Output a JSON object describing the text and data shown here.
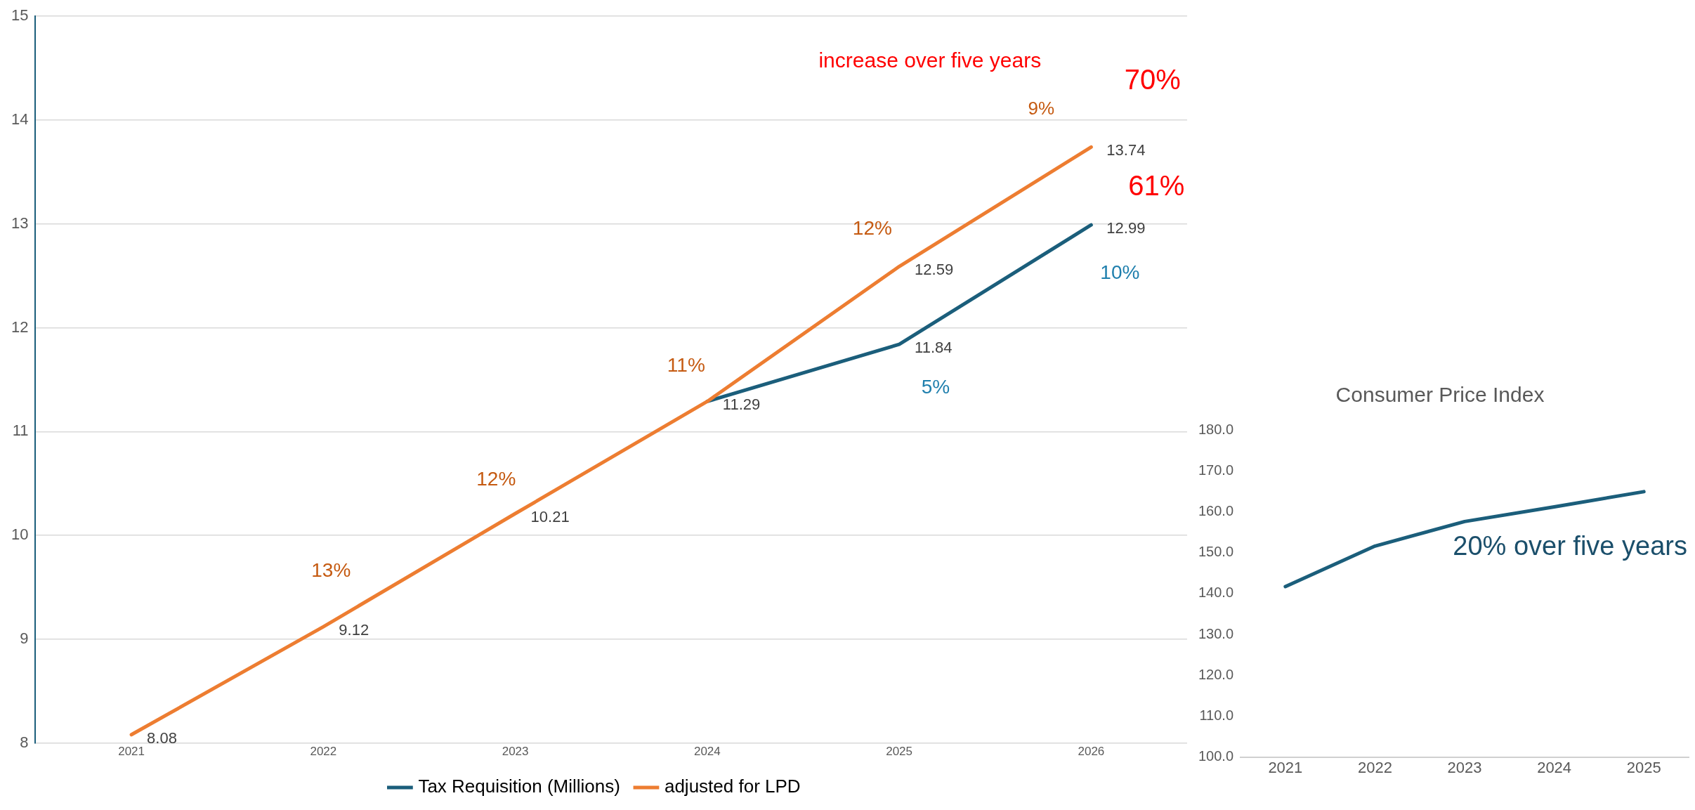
{
  "chart_data": [
    {
      "type": "line",
      "x": [
        2021,
        2022,
        2023,
        2024,
        2025,
        2026
      ],
      "xlim": [
        2020.5,
        2026.5
      ],
      "xticks": [
        2021,
        2022,
        2023,
        2024,
        2025,
        2026
      ],
      "ylim": [
        8,
        15
      ],
      "yticks": [
        8,
        9,
        10,
        11,
        12,
        13,
        14,
        15
      ],
      "grid": "y",
      "legend": "bottom",
      "marker": "none",
      "line_style": "solid",
      "series": [
        {
          "name": "Tax Requisition (Millions)",
          "color": "#1b5e7b",
          "values": [
            null,
            null,
            null,
            11.29,
            11.84,
            12.99
          ],
          "value_labels": [
            null,
            null,
            null,
            "11.29",
            "11.84",
            "12.99"
          ]
        },
        {
          "name": "adjusted for LPD",
          "color": "#ed7d31",
          "values": [
            8.08,
            9.12,
            10.21,
            11.29,
            12.59,
            13.74
          ],
          "value_labels": [
            "8.08",
            "9.12",
            "10.21",
            null,
            "12.59",
            "13.74"
          ]
        }
      ],
      "annotations": [
        "13%",
        "12%",
        "11%",
        "12%",
        "9%",
        "5%",
        "10%",
        "increase over five years",
        "70%",
        "61%"
      ]
    },
    {
      "type": "line",
      "title": "Consumer Price Index",
      "x": [
        2021,
        2022,
        2023,
        2024,
        2025
      ],
      "xlim": [
        2020.5,
        2025.5
      ],
      "xticks": [
        2021,
        2022,
        2023,
        2024,
        2025
      ],
      "ylim": [
        100,
        180
      ],
      "yticks": [
        {
          "value": 100,
          "label": "100.0"
        },
        {
          "value": 110,
          "label": "110.0"
        },
        {
          "value": 120,
          "label": "120.0"
        },
        {
          "value": 130,
          "label": "130.0"
        },
        {
          "value": 140,
          "label": "140.0"
        },
        {
          "value": 150,
          "label": "150.0"
        },
        {
          "value": 160,
          "label": "160.0"
        },
        {
          "value": 170,
          "label": "170.0"
        },
        {
          "value": 180,
          "label": "180.0"
        }
      ],
      "marker": "none",
      "line_style": "solid",
      "series": [
        {
          "color": "#1b5e7b",
          "values": [
            141.7,
            151.6,
            157.6,
            161.2,
            164.9
          ]
        }
      ],
      "annotations": [
        "20% over five years"
      ]
    }
  ]
}
